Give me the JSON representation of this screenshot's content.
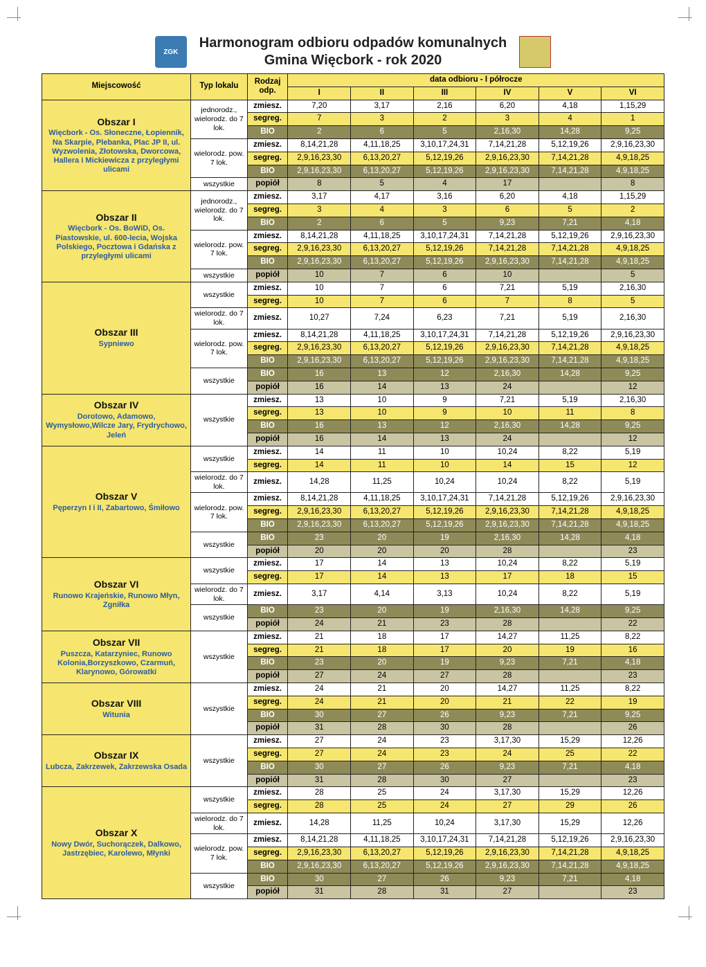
{
  "title_line1": "Harmonogram odbioru odpadów komunalnych",
  "title_line2": "Gmina Więcbork - rok 2020",
  "logo_text": "ZGK",
  "headers": {
    "loc": "Miejscowość",
    "typ": "Typ lokalu",
    "rodzaj": "Rodzaj odp.",
    "period": "data odbioru - I półrocze",
    "months": [
      "I",
      "II",
      "III",
      "IV",
      "V",
      "VI"
    ]
  },
  "waste_labels": {
    "zmiesz": "zmiesz.",
    "segreg": "segreg.",
    "bio": "BIO",
    "popiol": "popiół"
  },
  "typ_labels": {
    "jednorodz_do7": "jednorodz., wielorodz. do 7 lok.",
    "wielorodz_pow7": "wielorodz. pow. 7 lok.",
    "wielorodz_do7": "wielorodz. do 7 lok.",
    "wszystkie": "wszystkie"
  },
  "colors": {
    "hdr_bg": "#f6e66f",
    "loc_bg": "#f6e66f",
    "segreg_bg": "#f6e66f",
    "bio_bg": "#8f8b59",
    "popiol_bg": "#c9c4a2",
    "zmiesz_bg": "#ffffff",
    "desc_color": "#2d5c9e"
  },
  "areas": [
    {
      "name": "Obszar I",
      "desc": "Więcbork - Os. Słoneczne, Łopiennik, Na Skarpie, Plebanka, Plac JP II, ul. Wyzwolenia, Złotowska, Dworcowa, Hallera i Mickiewicza z przyległymi ulicami",
      "groups": [
        {
          "typ": "jednorodz_do7",
          "rows": [
            {
              "w": "zmiesz",
              "d": [
                "7,20",
                "3,17",
                "2,16",
                "6,20",
                "4,18",
                "1,15,29"
              ]
            },
            {
              "w": "segreg",
              "d": [
                "7",
                "3",
                "2",
                "3",
                "4",
                "1"
              ]
            },
            {
              "w": "bio",
              "d": [
                "2",
                "6",
                "5",
                "2,16,30",
                "14,28",
                "9,25"
              ]
            }
          ]
        },
        {
          "typ": "wielorodz_pow7",
          "rows": [
            {
              "w": "zmiesz",
              "d": [
                "8,14,21,28",
                "4,11,18,25",
                "3,10,17,24,31",
                "7,14,21,28",
                "5,12,19,26",
                "2,9,16,23,30"
              ]
            },
            {
              "w": "segreg",
              "d": [
                "2,9,16,23,30",
                "6,13,20,27",
                "5,12,19,26",
                "2,9,16,23,30",
                "7,14,21,28",
                "4,9,18,25"
              ]
            },
            {
              "w": "bio",
              "d": [
                "2,9,16,23,30",
                "6,13,20,27",
                "5,12,19,26",
                "2,9,16,23,30",
                "7,14,21,28",
                "4,9,18,25"
              ]
            }
          ]
        },
        {
          "typ": "wszystkie",
          "rows": [
            {
              "w": "popiol",
              "d": [
                "8",
                "5",
                "4",
                "17",
                "",
                "8"
              ]
            }
          ]
        }
      ]
    },
    {
      "name": "Obszar II",
      "desc": "Więcbork - Os. BoWiD, Os. Piastowskie, ul. 600-lecia, Wojska Polskiego, Pocztowa i Gdańska z przyległymi ulicami",
      "groups": [
        {
          "typ": "jednorodz_do7",
          "rows": [
            {
              "w": "zmiesz",
              "d": [
                "3,17",
                "4,17",
                "3,16",
                "6,20",
                "4,18",
                "1,15,29"
              ]
            },
            {
              "w": "segreg",
              "d": [
                "3",
                "4",
                "3",
                "6",
                "5",
                "2"
              ]
            },
            {
              "w": "bio",
              "d": [
                "2",
                "6",
                "5",
                "9,23",
                "7,21",
                "4,18"
              ]
            }
          ]
        },
        {
          "typ": "wielorodz_pow7",
          "rows": [
            {
              "w": "zmiesz",
              "d": [
                "8,14,21,28",
                "4,11,18,25",
                "3,10,17,24,31",
                "7,14,21,28",
                "5,12,19,26",
                "2,9,16,23,30"
              ]
            },
            {
              "w": "segreg",
              "d": [
                "2,9,16,23,30",
                "6,13,20,27",
                "5,12,19,26",
                "7,14,21,28",
                "7,14,21,28",
                "4,9,18,25"
              ]
            },
            {
              "w": "bio",
              "d": [
                "2,9,16,23,30",
                "6,13,20,27",
                "5,12,19,26",
                "2,9,16,23,30",
                "7,14,21,28",
                "4,9,18,25"
              ]
            }
          ]
        },
        {
          "typ": "wszystkie",
          "rows": [
            {
              "w": "popiol",
              "d": [
                "10",
                "7",
                "6",
                "10",
                "",
                "5"
              ]
            }
          ]
        }
      ]
    },
    {
      "name": "Obszar III",
      "desc": "Sypniewo",
      "groups": [
        {
          "typ": "wszystkie",
          "rows": [
            {
              "w": "zmiesz",
              "d": [
                "10",
                "7",
                "6",
                "7,21",
                "5,19",
                "2,16,30"
              ]
            },
            {
              "w": "segreg",
              "d": [
                "10",
                "7",
                "6",
                "7",
                "8",
                "5"
              ]
            }
          ]
        },
        {
          "typ": "wielorodz_do7",
          "rows": [
            {
              "w": "zmiesz",
              "d": [
                "10,27",
                "7,24",
                "6,23",
                "7,21",
                "5,19",
                "2,16,30"
              ]
            }
          ]
        },
        {
          "typ": "wielorodz_pow7",
          "rows": [
            {
              "w": "zmiesz",
              "d": [
                "8,14,21,28",
                "4,11,18,25",
                "3,10,17,24,31",
                "7,14,21,28",
                "5,12,19,26",
                "2,9,16,23,30"
              ]
            },
            {
              "w": "segreg",
              "d": [
                "2,9,16,23,30",
                "6,13,20,27",
                "5,12,19,26",
                "2,9,16,23,30",
                "7,14,21,28",
                "4,9,18,25"
              ]
            },
            {
              "w": "bio",
              "d": [
                "2,9,16,23,30",
                "6,13,20,27",
                "5,12,19,26",
                "2,9,16,23,30",
                "7,14,21,28",
                "4,9,18,25"
              ]
            }
          ]
        },
        {
          "typ": "wszystkie",
          "rows": [
            {
              "w": "bio",
              "d": [
                "16",
                "13",
                "12",
                "2,16,30",
                "14,28",
                "9,25"
              ]
            },
            {
              "w": "popiol",
              "d": [
                "16",
                "14",
                "13",
                "24",
                "",
                "12"
              ]
            }
          ]
        }
      ]
    },
    {
      "name": "Obszar IV",
      "desc": "Dorotowo, Adamowo, Wymysłowo,Wilcze Jary, Frydrychowo, Jeleń",
      "groups": [
        {
          "typ": "wszystkie",
          "rows": [
            {
              "w": "zmiesz",
              "d": [
                "13",
                "10",
                "9",
                "7,21",
                "5,19",
                "2,16,30"
              ]
            },
            {
              "w": "segreg",
              "d": [
                "13",
                "10",
                "9",
                "10",
                "11",
                "8"
              ]
            },
            {
              "w": "bio",
              "d": [
                "16",
                "13",
                "12",
                "2,16,30",
                "14,28",
                "9,25"
              ]
            },
            {
              "w": "popiol",
              "d": [
                "16",
                "14",
                "13",
                "24",
                "",
                "12"
              ]
            }
          ]
        }
      ]
    },
    {
      "name": "Obszar V",
      "desc": "Pęperzyn I i II, Zabartowo, Śmiłowo",
      "groups": [
        {
          "typ": "wszystkie",
          "rows": [
            {
              "w": "zmiesz",
              "d": [
                "14",
                "11",
                "10",
                "10,24",
                "8,22",
                "5,19"
              ]
            },
            {
              "w": "segreg",
              "d": [
                "14",
                "11",
                "10",
                "14",
                "15",
                "12"
              ]
            }
          ]
        },
        {
          "typ": "wielorodz_do7",
          "rows": [
            {
              "w": "zmiesz",
              "d": [
                "14,28",
                "11,25",
                "10,24",
                "10,24",
                "8,22",
                "5,19"
              ]
            }
          ]
        },
        {
          "typ": "wielorodz_pow7",
          "rows": [
            {
              "w": "zmiesz",
              "d": [
                "8,14,21,28",
                "4,11,18,25",
                "3,10,17,24,31",
                "7,14,21,28",
                "5,12,19,26",
                "2,9,16,23,30"
              ]
            },
            {
              "w": "segreg",
              "d": [
                "2,9,16,23,30",
                "6,13,20,27",
                "5,12,19,26",
                "2,9,16,23,30",
                "7,14,21,28",
                "4,9,18,25"
              ]
            },
            {
              "w": "bio",
              "d": [
                "2,9,16,23,30",
                "6,13,20,27",
                "5,12,19,26",
                "2,9,16,23,30",
                "7,14,21,28",
                "4,9,18,25"
              ]
            }
          ]
        },
        {
          "typ": "wszystkie",
          "rows": [
            {
              "w": "bio",
              "d": [
                "23",
                "20",
                "19",
                "2,16,30",
                "14,28",
                "4,18"
              ]
            },
            {
              "w": "popiol",
              "d": [
                "20",
                "20",
                "20",
                "28",
                "",
                "23"
              ]
            }
          ]
        }
      ]
    },
    {
      "name": "Obszar VI",
      "desc": "Runowo Krajeńskie, Runowo Młyn, Zgniłka",
      "groups": [
        {
          "typ": "wszystkie",
          "rows": [
            {
              "w": "zmiesz",
              "d": [
                "17",
                "14",
                "13",
                "10,24",
                "8,22",
                "5,19"
              ]
            },
            {
              "w": "segreg",
              "d": [
                "17",
                "14",
                "13",
                "17",
                "18",
                "15"
              ]
            }
          ]
        },
        {
          "typ": "wielorodz_do7",
          "rows": [
            {
              "w": "zmiesz",
              "d": [
                "3,17",
                "4,14",
                "3,13",
                "10,24",
                "8,22",
                "5,19"
              ]
            }
          ]
        },
        {
          "typ": "wszystkie",
          "rows": [
            {
              "w": "bio",
              "d": [
                "23",
                "20",
                "19",
                "2,16,30",
                "14,28",
                "9,25"
              ]
            },
            {
              "w": "popiol",
              "d": [
                "24",
                "21",
                "23",
                "28",
                "",
                "22"
              ]
            }
          ]
        }
      ]
    },
    {
      "name": "Obszar VII",
      "desc": "Puszcza, Katarzyniec, Runowo Kolonia,Borzyszkowo, Czarmuń, Klarynowo, Górowatki",
      "groups": [
        {
          "typ": "wszystkie",
          "rows": [
            {
              "w": "zmiesz",
              "d": [
                "21",
                "18",
                "17",
                "14,27",
                "11,25",
                "8,22"
              ]
            },
            {
              "w": "segreg",
              "d": [
                "21",
                "18",
                "17",
                "20",
                "19",
                "16"
              ]
            },
            {
              "w": "bio",
              "d": [
                "23",
                "20",
                "19",
                "9,23",
                "7,21",
                "4,18"
              ]
            },
            {
              "w": "popiol",
              "d": [
                "27",
                "24",
                "27",
                "28",
                "",
                "23"
              ]
            }
          ]
        }
      ]
    },
    {
      "name": "Obszar VIII",
      "desc": "Witunia",
      "groups": [
        {
          "typ": "wszystkie",
          "rows": [
            {
              "w": "zmiesz",
              "d": [
                "24",
                "21",
                "20",
                "14,27",
                "11,25",
                "8,22"
              ]
            },
            {
              "w": "segreg",
              "d": [
                "24",
                "21",
                "20",
                "21",
                "22",
                "19"
              ]
            },
            {
              "w": "bio",
              "d": [
                "30",
                "27",
                "26",
                "9,23",
                "7,21",
                "9,25"
              ]
            },
            {
              "w": "popiol",
              "d": [
                "31",
                "28",
                "30",
                "28",
                "",
                "26"
              ]
            }
          ]
        }
      ]
    },
    {
      "name": "Obszar IX",
      "desc": "Lubcza, Zakrzewek, Zakrzewska Osada",
      "groups": [
        {
          "typ": "wszystkie",
          "rows": [
            {
              "w": "zmiesz",
              "d": [
                "27",
                "24",
                "23",
                "3,17,30",
                "15,29",
                "12,26"
              ]
            },
            {
              "w": "segreg",
              "d": [
                "27",
                "24",
                "23",
                "24",
                "25",
                "22"
              ]
            },
            {
              "w": "bio",
              "d": [
                "30",
                "27",
                "26",
                "9,23",
                "7,21",
                "4,18"
              ]
            },
            {
              "w": "popiol",
              "d": [
                "31",
                "28",
                "30",
                "27",
                "",
                "23"
              ]
            }
          ]
        }
      ]
    },
    {
      "name": "Obszar X",
      "desc": "Nowy Dwór, Suchorączek, Dalkowo, Jastrzębiec, Karolewo, Młynki",
      "groups": [
        {
          "typ": "wszystkie",
          "rows": [
            {
              "w": "zmiesz",
              "d": [
                "28",
                "25",
                "24",
                "3,17,30",
                "15,29",
                "12,26"
              ]
            },
            {
              "w": "segreg",
              "d": [
                "28",
                "25",
                "24",
                "27",
                "29",
                "26"
              ]
            }
          ]
        },
        {
          "typ": "wielorodz_do7",
          "rows": [
            {
              "w": "zmiesz",
              "d": [
                "14,28",
                "11,25",
                "10,24",
                "3,17,30",
                "15,29",
                "12,26"
              ]
            }
          ]
        },
        {
          "typ": "wielorodz_pow7",
          "rows": [
            {
              "w": "zmiesz",
              "d": [
                "8,14,21,28",
                "4,11,18,25",
                "3,10,17,24,31",
                "7,14,21,28",
                "5,12,19,26",
                "2,9,16,23,30"
              ]
            },
            {
              "w": "segreg",
              "d": [
                "2,9,16,23,30",
                "6,13,20,27",
                "5,12,19,26",
                "2,9,16,23,30",
                "7,14,21,28",
                "4,9,18,25"
              ]
            },
            {
              "w": "bio",
              "d": [
                "2,9,16,23,30",
                "6,13,20,27",
                "5,12,19,26",
                "2,9,16,23,30",
                "7,14,21,28",
                "4,9,18,25"
              ]
            }
          ]
        },
        {
          "typ": "wszystkie",
          "rows": [
            {
              "w": "bio",
              "d": [
                "30",
                "27",
                "26",
                "9,23",
                "7,21",
                "4,18"
              ]
            },
            {
              "w": "popiol",
              "d": [
                "31",
                "28",
                "31",
                "27",
                "",
                "23"
              ]
            }
          ]
        }
      ]
    }
  ]
}
